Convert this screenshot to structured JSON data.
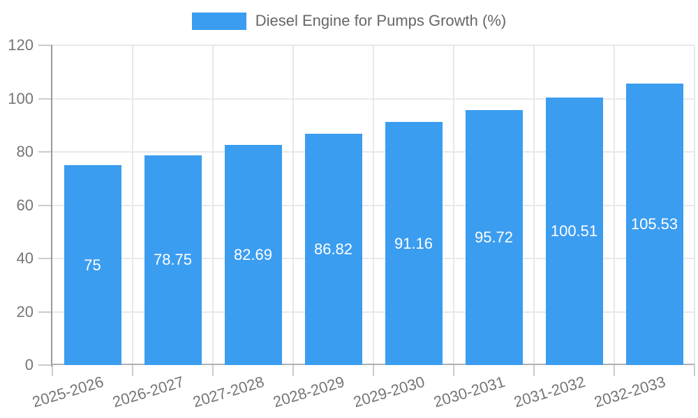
{
  "legend": {
    "label": "Diesel Engine for Pumps Growth (%)"
  },
  "chart_data": {
    "type": "bar",
    "title": "Diesel Engine for Pumps Growth (%)",
    "categories": [
      "2025-2026",
      "2026-2027",
      "2027-2028",
      "2028-2029",
      "2029-2030",
      "2030-2031",
      "2031-2032",
      "2032-2033"
    ],
    "values": [
      75,
      78.75,
      82.69,
      86.82,
      91.16,
      95.72,
      100.51,
      105.53
    ],
    "value_labels": [
      "75",
      "78.75",
      "82.69",
      "86.82",
      "91.16",
      "95.72",
      "100.51",
      "105.53"
    ],
    "xlabel": "",
    "ylabel": "",
    "ylim": [
      0,
      120
    ],
    "ytick_step": 20,
    "grid": true,
    "legend_position": "top-center",
    "bar_color": "#3b9df0",
    "value_label_color": "#ffffff",
    "axis_text_color": "#757575",
    "legend_text_color": "#666666",
    "grid_color": "#e8e8e8",
    "y_axis_line_color": "#999999",
    "x_axis_line_color": "#b0b0b0",
    "tick_color": "#cccccc"
  }
}
